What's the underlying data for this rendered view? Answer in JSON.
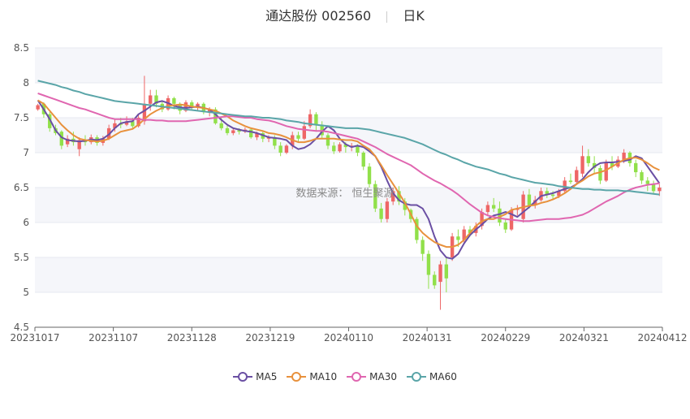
{
  "title": {
    "name": "通达股份 002560",
    "period": "日K"
  },
  "watermark": "数据来源： 恒生聚源",
  "chart_data": {
    "type": "candlestick",
    "ylim": [
      4.5,
      8.5
    ],
    "yticks": [
      4.5,
      5,
      5.5,
      6,
      6.5,
      7,
      7.5,
      8,
      8.5
    ],
    "xticks": [
      "20231017",
      "20231107",
      "20231128",
      "20231219",
      "20240110",
      "20240131",
      "20240229",
      "20240321",
      "20240412"
    ],
    "grid": true,
    "legend_position": "bottom",
    "colors": {
      "up": "#ee6666",
      "down": "#91e04a",
      "MA5": "#6a4fa3",
      "MA10": "#e8913c",
      "MA30": "#e066b0",
      "MA60": "#5aa5a8"
    },
    "series": [
      {
        "name": "MA5",
        "values": [
          7.75,
          7.62,
          7.48,
          7.32,
          7.22,
          7.18,
          7.17,
          7.16,
          7.17,
          7.19,
          7.18,
          7.2,
          7.26,
          7.35,
          7.42,
          7.44,
          7.45,
          7.55,
          7.6,
          7.66,
          7.72,
          7.74,
          7.71,
          7.67,
          7.65,
          7.64,
          7.65,
          7.66,
          7.64,
          7.62,
          7.55,
          7.47,
          7.4,
          7.35,
          7.33,
          7.31,
          7.3,
          7.28,
          7.25,
          7.22,
          7.21,
          7.2,
          7.18,
          7.1,
          7.05,
          7.07,
          7.12,
          7.2,
          7.3,
          7.38,
          7.32,
          7.2,
          7.12,
          7.08,
          7.1,
          7.08,
          7.02,
          6.95,
          6.8,
          6.6,
          6.42,
          6.32,
          6.27,
          6.25,
          6.25,
          6.2,
          6.05,
          5.8,
          5.6,
          5.5,
          5.48,
          5.55,
          5.7,
          5.82,
          5.9,
          5.97,
          6.05,
          6.1,
          6.12,
          6.15,
          6.12,
          6.08,
          6.15,
          6.22,
          6.3,
          6.38,
          6.4,
          6.42,
          6.45,
          6.48,
          6.5,
          6.55,
          6.62,
          6.72,
          6.8,
          6.85,
          6.86,
          6.86,
          6.87,
          6.88,
          6.9,
          6.95,
          6.92,
          6.8,
          6.68,
          6.56
        ]
      },
      {
        "name": "MA10",
        "values": [
          7.75,
          7.7,
          7.6,
          7.5,
          7.4,
          7.32,
          7.25,
          7.2,
          7.18,
          7.17,
          7.16,
          7.17,
          7.2,
          7.25,
          7.3,
          7.32,
          7.34,
          7.4,
          7.48,
          7.55,
          7.6,
          7.64,
          7.67,
          7.68,
          7.69,
          7.68,
          7.66,
          7.65,
          7.64,
          7.62,
          7.6,
          7.56,
          7.52,
          7.46,
          7.42,
          7.38,
          7.35,
          7.33,
          7.31,
          7.28,
          7.27,
          7.25,
          7.22,
          7.18,
          7.15,
          7.15,
          7.17,
          7.2,
          7.2,
          7.2,
          7.2,
          7.19,
          7.18,
          7.18,
          7.16,
          7.1,
          7.05,
          6.95,
          6.82,
          6.68,
          6.55,
          6.42,
          6.28,
          6.12,
          5.95,
          5.85,
          5.78,
          5.72,
          5.68,
          5.65,
          5.65,
          5.68,
          5.75,
          5.85,
          5.95,
          6.02,
          6.05,
          6.05,
          6.08,
          6.12,
          6.18,
          6.2,
          6.22,
          6.24,
          6.25,
          6.28,
          6.3,
          6.33,
          6.37,
          6.42,
          6.48,
          6.55,
          6.6,
          6.66,
          6.7,
          6.72,
          6.75,
          6.8,
          6.85,
          6.9,
          6.92,
          6.93,
          6.9,
          6.85,
          6.79,
          6.75
        ]
      },
      {
        "name": "MA30",
        "values": [
          7.85,
          7.82,
          7.79,
          7.76,
          7.73,
          7.7,
          7.67,
          7.64,
          7.62,
          7.59,
          7.56,
          7.53,
          7.5,
          7.48,
          7.48,
          7.48,
          7.48,
          7.48,
          7.47,
          7.47,
          7.46,
          7.46,
          7.45,
          7.45,
          7.45,
          7.45,
          7.46,
          7.47,
          7.48,
          7.49,
          7.5,
          7.51,
          7.52,
          7.52,
          7.51,
          7.5,
          7.5,
          7.48,
          7.47,
          7.46,
          7.44,
          7.41,
          7.38,
          7.36,
          7.34,
          7.33,
          7.32,
          7.31,
          7.31,
          7.3,
          7.28,
          7.26,
          7.24,
          7.22,
          7.2,
          7.16,
          7.12,
          7.08,
          7.03,
          6.98,
          6.94,
          6.9,
          6.86,
          6.82,
          6.76,
          6.7,
          6.65,
          6.6,
          6.56,
          6.51,
          6.46,
          6.4,
          6.33,
          6.26,
          6.2,
          6.14,
          6.1,
          6.08,
          6.06,
          6.05,
          6.04,
          6.03,
          6.02,
          6.02,
          6.03,
          6.04,
          6.05,
          6.05,
          6.05,
          6.06,
          6.07,
          6.09,
          6.11,
          6.15,
          6.2,
          6.25,
          6.3,
          6.34,
          6.38,
          6.43,
          6.47,
          6.5,
          6.52,
          6.54,
          6.55,
          6.56
        ]
      },
      {
        "name": "MA60",
        "values": [
          8.03,
          8.01,
          7.99,
          7.97,
          7.94,
          7.92,
          7.89,
          7.87,
          7.84,
          7.82,
          7.8,
          7.78,
          7.76,
          7.74,
          7.73,
          7.72,
          7.71,
          7.7,
          7.69,
          7.68,
          7.67,
          7.66,
          7.65,
          7.64,
          7.63,
          7.62,
          7.61,
          7.6,
          7.59,
          7.58,
          7.57,
          7.56,
          7.55,
          7.54,
          7.53,
          7.52,
          7.52,
          7.51,
          7.5,
          7.5,
          7.49,
          7.48,
          7.46,
          7.45,
          7.44,
          7.42,
          7.41,
          7.4,
          7.39,
          7.38,
          7.37,
          7.36,
          7.35,
          7.35,
          7.35,
          7.34,
          7.33,
          7.31,
          7.29,
          7.27,
          7.25,
          7.23,
          7.21,
          7.18,
          7.15,
          7.12,
          7.08,
          7.04,
          7.0,
          6.97,
          6.93,
          6.9,
          6.86,
          6.83,
          6.8,
          6.78,
          6.76,
          6.73,
          6.7,
          6.68,
          6.65,
          6.63,
          6.61,
          6.59,
          6.57,
          6.56,
          6.55,
          6.54,
          6.52,
          6.51,
          6.5,
          6.49,
          6.48,
          6.48,
          6.47,
          6.47,
          6.46,
          6.46,
          6.46,
          6.45,
          6.45,
          6.44,
          6.43,
          6.42,
          6.41,
          6.4
        ]
      }
    ],
    "candles": [
      [
        7.62,
        7.68,
        7.7,
        7.6
      ],
      [
        7.7,
        7.55,
        7.72,
        7.5
      ],
      [
        7.55,
        7.35,
        7.58,
        7.3
      ],
      [
        7.35,
        7.28,
        7.4,
        7.25
      ],
      [
        7.3,
        7.1,
        7.32,
        7.05
      ],
      [
        7.12,
        7.2,
        7.25,
        7.08
      ],
      [
        7.2,
        7.15,
        7.3,
        7.1
      ],
      [
        7.05,
        7.18,
        7.22,
        6.95
      ],
      [
        7.18,
        7.15,
        7.25,
        7.1
      ],
      [
        7.15,
        7.22,
        7.26,
        7.12
      ],
      [
        7.22,
        7.14,
        7.25,
        7.1
      ],
      [
        7.14,
        7.2,
        7.24,
        7.1
      ],
      [
        7.2,
        7.35,
        7.4,
        7.18
      ],
      [
        7.35,
        7.42,
        7.48,
        7.3
      ],
      [
        7.42,
        7.4,
        7.5,
        7.35
      ],
      [
        7.4,
        7.45,
        7.52,
        7.38
      ],
      [
        7.45,
        7.38,
        7.5,
        7.35
      ],
      [
        7.38,
        7.5,
        7.55,
        7.36
      ],
      [
        7.45,
        7.7,
        8.1,
        7.4
      ],
      [
        7.7,
        7.82,
        7.9,
        7.6
      ],
      [
        7.82,
        7.7,
        7.9,
        7.65
      ],
      [
        7.7,
        7.62,
        7.75,
        7.58
      ],
      [
        7.62,
        7.78,
        7.82,
        7.6
      ],
      [
        7.78,
        7.7,
        7.8,
        7.62
      ],
      [
        7.7,
        7.6,
        7.72,
        7.55
      ],
      [
        7.6,
        7.72,
        7.75,
        7.58
      ],
      [
        7.72,
        7.65,
        7.75,
        7.6
      ],
      [
        7.65,
        7.7,
        7.72,
        7.6
      ],
      [
        7.7,
        7.58,
        7.72,
        7.55
      ],
      [
        7.58,
        7.62,
        7.65,
        7.52
      ],
      [
        7.62,
        7.42,
        7.65,
        7.4
      ],
      [
        7.42,
        7.35,
        7.5,
        7.32
      ],
      [
        7.35,
        7.28,
        7.4,
        7.25
      ],
      [
        7.28,
        7.32,
        7.36,
        7.25
      ],
      [
        7.32,
        7.3,
        7.35,
        7.26
      ],
      [
        7.3,
        7.33,
        7.36,
        7.28
      ],
      [
        7.33,
        7.22,
        7.36,
        7.2
      ],
      [
        7.22,
        7.28,
        7.3,
        7.18
      ],
      [
        7.28,
        7.2,
        7.3,
        7.15
      ],
      [
        7.2,
        7.22,
        7.25,
        7.15
      ],
      [
        7.22,
        7.1,
        7.25,
        7.05
      ],
      [
        7.1,
        7.0,
        7.15,
        6.95
      ],
      [
        7.0,
        7.1,
        7.12,
        6.98
      ],
      [
        7.1,
        7.25,
        7.3,
        7.05
      ],
      [
        7.25,
        7.2,
        7.3,
        7.15
      ],
      [
        7.2,
        7.38,
        7.45,
        7.18
      ],
      [
        7.38,
        7.55,
        7.62,
        7.35
      ],
      [
        7.55,
        7.4,
        7.58,
        7.3
      ],
      [
        7.4,
        7.25,
        7.45,
        7.2
      ],
      [
        7.25,
        7.1,
        7.28,
        7.05
      ],
      [
        7.1,
        7.02,
        7.15,
        6.98
      ],
      [
        7.02,
        7.12,
        7.15,
        7.0
      ],
      [
        7.12,
        7.08,
        7.15,
        7.0
      ],
      [
        7.08,
        7.1,
        7.14,
        7.02
      ],
      [
        7.1,
        7.0,
        7.12,
        6.95
      ],
      [
        7.0,
        6.8,
        7.02,
        6.75
      ],
      [
        6.8,
        6.55,
        6.85,
        6.5
      ],
      [
        6.55,
        6.2,
        6.6,
        6.15
      ],
      [
        6.2,
        6.05,
        6.28,
        6.0
      ],
      [
        6.05,
        6.3,
        6.35,
        6.0
      ],
      [
        6.3,
        6.45,
        6.5,
        6.25
      ],
      [
        6.45,
        6.3,
        6.52,
        6.25
      ],
      [
        6.3,
        6.18,
        6.35,
        6.1
      ],
      [
        6.18,
        6.05,
        6.2,
        6.0
      ],
      [
        6.05,
        5.75,
        6.08,
        5.7
      ],
      [
        5.75,
        5.55,
        5.8,
        5.45
      ],
      [
        5.55,
        5.25,
        5.6,
        5.05
      ],
      [
        5.25,
        5.1,
        5.3,
        5.05
      ],
      [
        5.15,
        5.4,
        5.45,
        4.75
      ],
      [
        5.4,
        5.2,
        5.5,
        5.0
      ],
      [
        5.5,
        5.8,
        5.85,
        5.45
      ],
      [
        5.8,
        5.75,
        5.9,
        5.65
      ],
      [
        5.75,
        5.9,
        5.95,
        5.7
      ],
      [
        5.9,
        5.85,
        5.95,
        5.8
      ],
      [
        5.85,
        5.95,
        6.0,
        5.8
      ],
      [
        5.95,
        6.15,
        6.2,
        5.9
      ],
      [
        6.15,
        6.25,
        6.3,
        6.1
      ],
      [
        6.25,
        6.2,
        6.35,
        6.15
      ],
      [
        6.2,
        6.0,
        6.3,
        5.95
      ],
      [
        6.0,
        5.9,
        6.05,
        5.85
      ],
      [
        5.9,
        6.18,
        6.22,
        5.88
      ],
      [
        6.18,
        6.2,
        6.25,
        6.1
      ],
      [
        6.05,
        6.4,
        6.45,
        6.0
      ],
      [
        6.4,
        6.25,
        6.48,
        6.2
      ],
      [
        6.25,
        6.32,
        6.38,
        6.2
      ],
      [
        6.32,
        6.45,
        6.5,
        6.3
      ],
      [
        6.45,
        6.4,
        6.5,
        6.35
      ],
      [
        6.4,
        6.38,
        6.45,
        6.32
      ],
      [
        6.38,
        6.45,
        6.48,
        6.35
      ],
      [
        6.45,
        6.6,
        6.65,
        6.42
      ],
      [
        6.6,
        6.58,
        6.7,
        6.55
      ],
      [
        6.58,
        6.75,
        6.8,
        6.55
      ],
      [
        6.7,
        6.95,
        7.1,
        6.65
      ],
      [
        6.95,
        6.85,
        7.05,
        6.8
      ],
      [
        6.85,
        6.78,
        6.95,
        6.7
      ],
      [
        6.78,
        6.6,
        6.82,
        6.55
      ],
      [
        6.6,
        6.85,
        6.9,
        6.58
      ],
      [
        6.85,
        6.8,
        6.95,
        6.75
      ],
      [
        6.8,
        6.9,
        6.95,
        6.78
      ],
      [
        6.9,
        7.0,
        7.05,
        6.85
      ],
      [
        7.0,
        6.85,
        7.02,
        6.8
      ],
      [
        6.85,
        6.72,
        6.9,
        6.65
      ],
      [
        6.72,
        6.6,
        6.75,
        6.55
      ],
      [
        6.6,
        6.55,
        6.65,
        6.45
      ],
      [
        6.55,
        6.45,
        6.6,
        6.4
      ],
      [
        6.45,
        6.5,
        6.55,
        6.38
      ]
    ]
  },
  "legend": [
    {
      "label": "MA5",
      "color": "#6a4fa3"
    },
    {
      "label": "MA10",
      "color": "#e8913c"
    },
    {
      "label": "MA30",
      "color": "#e066b0"
    },
    {
      "label": "MA60",
      "color": "#5aa5a8"
    }
  ]
}
